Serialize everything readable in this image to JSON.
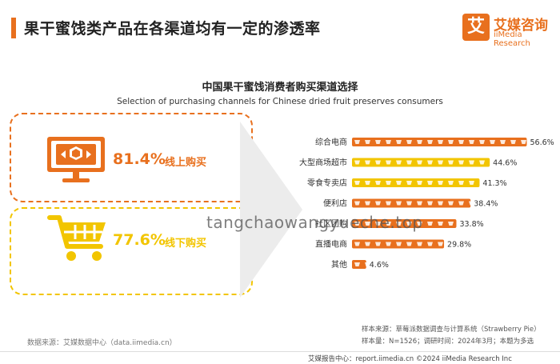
{
  "header": {
    "title": "果干蜜饯类产品在各渠道均有一定的渗透率",
    "logo_mark": "艾",
    "logo_cn": "艾媒咨询",
    "logo_en": "iiMedia Research"
  },
  "colors": {
    "accent": "#e8701e",
    "yellow": "#f2c500"
  },
  "summary": {
    "online_value": "81.4%",
    "online_label": "线上购买",
    "offline_value": "77.6%",
    "offline_label": "线下购买",
    "online_icon": "monitor-box-icon",
    "offline_icon": "shopping-cart-icon"
  },
  "chart_data": {
    "type": "bar",
    "title": "中国果干蜜饯消费者购买渠道选择",
    "subtitle": "Selection of purchasing channels for Chinese dried fruit preserves consumers",
    "categories": [
      "综合电商",
      "大型商场超市",
      "零食专卖店",
      "便利店",
      "社区团购",
      "直播电商",
      "其他"
    ],
    "values": [
      56.6,
      44.6,
      41.3,
      38.4,
      33.8,
      29.8,
      4.6
    ],
    "labels": [
      "56.6%",
      "44.6%",
      "41.3%",
      "38.4%",
      "33.8%",
      "29.8%",
      "4.6%"
    ],
    "bar_colors": [
      "#e8701e",
      "#f2c500",
      "#f2c500",
      "#e8701e",
      "#e8701e",
      "#e8701e",
      "#e8701e"
    ],
    "unit": "%",
    "orientation": "horizontal",
    "grid": false
  },
  "watermark": "tangchaowangyueche.top",
  "footer": {
    "source_left": "数据来源：艾媒数据中心（data.iimedia.cn）",
    "note_1": "样本来源：草莓派数据调查与计算系统（Strawberry Pie）",
    "note_2": "样本量：N=1526；调研时间：2024年3月；本题为多选",
    "bottom": "艾媒报告中心：report.iimedia.cn    ©2024  iiMedia Research Inc"
  }
}
